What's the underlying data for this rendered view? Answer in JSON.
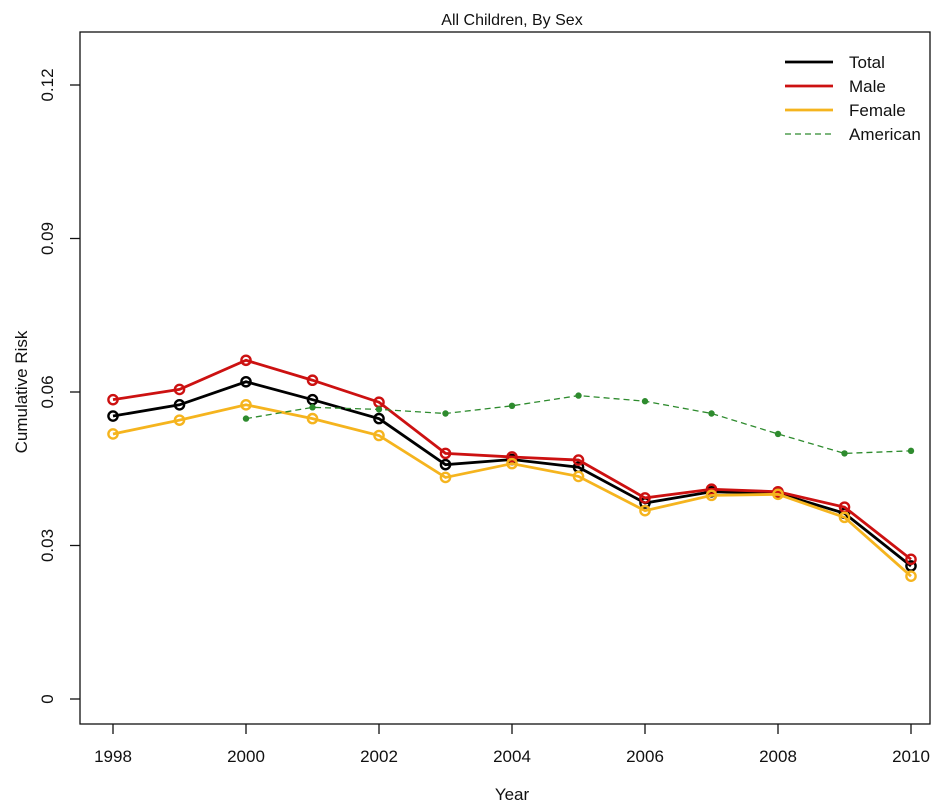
{
  "chart_data": {
    "type": "line",
    "title": "All Children, By Sex",
    "xlabel": "Year",
    "ylabel": "Cumulative Risk",
    "xlim": [
      1998,
      2010
    ],
    "ylim": [
      0,
      0.12
    ],
    "x_ticks": [
      1998,
      2000,
      2002,
      2004,
      2006,
      2008,
      2010
    ],
    "x_tick_labels": [
      "1998",
      "2000",
      "2002",
      "2004",
      "2006",
      "2008",
      "2010"
    ],
    "y_ticks": [
      0,
      0.03,
      0.06,
      0.09,
      0.12
    ],
    "y_tick_labels": [
      "0",
      "0.03",
      "0.06",
      "0.09",
      "0.12"
    ],
    "grid": false,
    "legend_position": "top-right",
    "series": [
      {
        "name": "Total",
        "color": "#000000",
        "style": "solid",
        "marker": "open-circle",
        "x": [
          1998,
          1999,
          2000,
          2001,
          2002,
          2003,
          2004,
          2005,
          2006,
          2007,
          2008,
          2009,
          2010
        ],
        "values": [
          0.0553,
          0.0575,
          0.062,
          0.0585,
          0.0548,
          0.0458,
          0.0468,
          0.0453,
          0.0383,
          0.0405,
          0.0402,
          0.0363,
          0.026
        ]
      },
      {
        "name": "Male",
        "color": "#cc1111",
        "style": "solid",
        "marker": "open-circle",
        "x": [
          1998,
          1999,
          2000,
          2001,
          2002,
          2003,
          2004,
          2005,
          2006,
          2007,
          2008,
          2009,
          2010
        ],
        "values": [
          0.0585,
          0.0605,
          0.0662,
          0.0623,
          0.058,
          0.048,
          0.0473,
          0.0467,
          0.0393,
          0.041,
          0.0405,
          0.0375,
          0.0273
        ]
      },
      {
        "name": "Female",
        "color": "#f5b41e",
        "style": "solid",
        "marker": "open-circle",
        "x": [
          1998,
          1999,
          2000,
          2001,
          2002,
          2003,
          2004,
          2005,
          2006,
          2007,
          2008,
          2009,
          2010
        ],
        "values": [
          0.0518,
          0.0545,
          0.0575,
          0.0548,
          0.0515,
          0.0433,
          0.046,
          0.0435,
          0.0368,
          0.0398,
          0.04,
          0.0355,
          0.024
        ]
      },
      {
        "name": "American",
        "color": "#2e8b2e",
        "style": "dashed",
        "marker": "filled-dot",
        "x": [
          2000,
          2001,
          2002,
          2003,
          2004,
          2005,
          2006,
          2007,
          2008,
          2009,
          2010
        ],
        "values": [
          0.0548,
          0.057,
          0.0566,
          0.0558,
          0.0573,
          0.0593,
          0.0582,
          0.0558,
          0.0518,
          0.048,
          0.0485
        ]
      }
    ]
  }
}
